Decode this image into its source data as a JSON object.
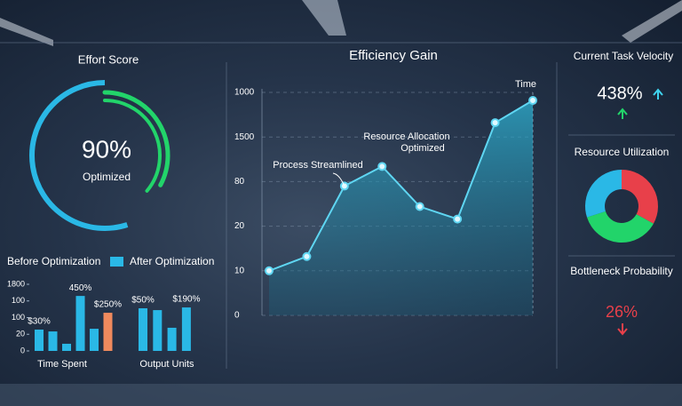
{
  "chart_data": [
    {
      "type": "gauge",
      "title": "Effort Score",
      "values": [
        90
      ],
      "value_labels": [
        "90%"
      ],
      "subtitle": "Optimized",
      "ylim": [
        0,
        100
      ],
      "color": "#2ab8e6",
      "accent": "#22d46a"
    },
    {
      "type": "line",
      "title": "Efficiency Gain",
      "x_label": "Time",
      "categories": [
        null,
        null,
        null,
        null,
        null,
        null,
        null,
        null
      ],
      "series": [
        {
          "color": "#5fd6f2",
          "values": [
            1.0,
            1.32,
            2.9,
            3.34,
            2.44,
            2.16,
            4.32,
            4.82
          ]
        }
      ],
      "ylim": [
        0,
        5
      ],
      "yticks": [
        {
          "value": 0,
          "label": "0"
        },
        {
          "value": 1,
          "label": "10"
        },
        {
          "value": 2,
          "label": "20"
        },
        {
          "value": 3,
          "label": "80"
        },
        {
          "value": 4,
          "label": "1500"
        },
        {
          "value": 5,
          "label": "1000"
        }
      ],
      "annotations": [
        "Process Streamlined",
        "Resource Allocation",
        "Optimized"
      ],
      "grid": true
    },
    {
      "type": "bar",
      "legend": [
        {
          "name": "Before Optimization",
          "color": null
        },
        {
          "name": "After Optimization",
          "color": "#2ab8e6"
        }
      ],
      "ylim": [
        0,
        4
      ],
      "yticks": [
        {
          "value": 0,
          "label": "0"
        },
        {
          "value": 1,
          "label": "20"
        },
        {
          "value": 2,
          "label": "100"
        },
        {
          "value": 3,
          "label": "100"
        },
        {
          "value": 4,
          "label": "1800"
        }
      ],
      "groups": [
        {
          "label": "Time Spent",
          "values": [
            1.28,
            1.17,
            0.43,
            3.3,
            1.33,
            2.29
          ],
          "colors": [
            "#2ab8e6",
            "#2ab8e6",
            "#2ab8e6",
            "#2ab8e6",
            "#2ab8e6",
            "#f08a5d"
          ],
          "notes": [
            "$30%",
            null,
            null,
            "450%",
            null,
            "$250%"
          ]
        },
        {
          "label": "Output Units",
          "values": [
            2.56,
            2.45,
            1.39,
            2.61
          ],
          "colors": [
            "#2ab8e6",
            "#2ab8e6",
            "#2ab8e6",
            "#2ab8e6"
          ],
          "notes": [
            "$50%",
            null,
            null,
            "$190%"
          ]
        }
      ]
    },
    {
      "type": "pie",
      "title": "Resource Utilization",
      "values": [
        33,
        37,
        30
      ],
      "colors": [
        "#e8404a",
        "#22d46a",
        "#2ab8e6"
      ]
    }
  ],
  "kpis": [
    {
      "title": "Current Task Velocity",
      "value": "438%"
    },
    {
      "title": "Bottleneck Probability",
      "value": "26%"
    }
  ]
}
